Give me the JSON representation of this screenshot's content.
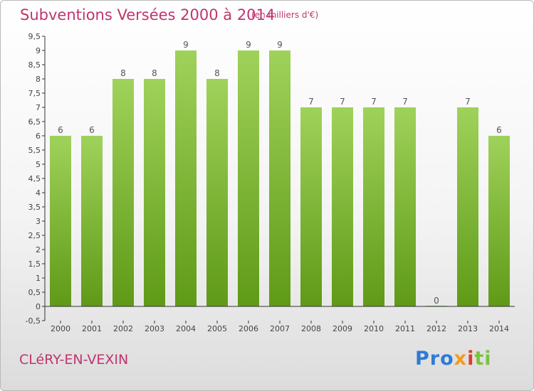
{
  "header": {
    "title": "Subventions Versées 2000 à 2014",
    "unit": "(en milliers d'€)"
  },
  "footer": {
    "commune": "CLéRY-EN-VEXIN",
    "logo": [
      "Pro",
      "x",
      "i",
      "ti"
    ]
  },
  "colors": {
    "title": "#c0346e",
    "bar_top": "#9fd25a",
    "bar_bottom": "#5f9a17",
    "axis": "#333333"
  },
  "chart_data": {
    "type": "bar",
    "categories": [
      "2000",
      "2001",
      "2002",
      "2003",
      "2004",
      "2005",
      "2006",
      "2007",
      "2008",
      "2009",
      "2010",
      "2011",
      "2012",
      "2013",
      "2014"
    ],
    "values": [
      6,
      6,
      8,
      8,
      9,
      8,
      9,
      9,
      7,
      7,
      7,
      7,
      0,
      7,
      6
    ],
    "yticks": [
      "-0,5",
      "0",
      "0,5",
      "1",
      "1,5",
      "2",
      "2,5",
      "3",
      "3,5",
      "4",
      "4,5",
      "5",
      "5,5",
      "6",
      "6,5",
      "7",
      "7,5",
      "8",
      "8,5",
      "9",
      "9,5"
    ],
    "ylim": [
      -0.5,
      9.5
    ],
    "grid": false,
    "legend": "none"
  }
}
